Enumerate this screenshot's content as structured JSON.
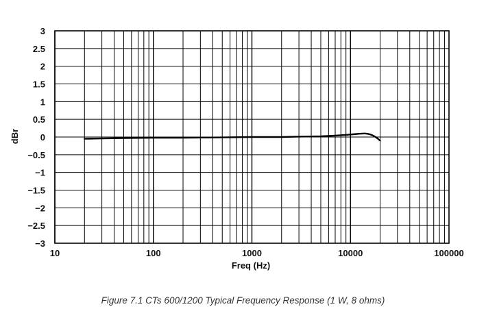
{
  "chart_data": {
    "type": "line",
    "xscale": "log",
    "xlim": [
      10,
      100000
    ],
    "ylim": [
      -3,
      3
    ],
    "xticks": [
      "10",
      "100",
      "1000",
      "10000",
      "100000"
    ],
    "yticks": [
      "3",
      "2.5",
      "2",
      "1.5",
      "1",
      "0.5",
      "0",
      "-0.5",
      "-1",
      "-1.5",
      "-2",
      "-2.5",
      "-3"
    ],
    "xlabel": "Freq (Hz)",
    "ylabel": "dBr",
    "grid": true,
    "series": [
      {
        "color": "#000000",
        "x": [
          20,
          30,
          50,
          100,
          200,
          500,
          1000,
          2000,
          3000,
          5000,
          7000,
          10000,
          12000,
          14000,
          15000,
          16000,
          17000,
          18000,
          19000,
          20000
        ],
        "y": [
          -0.05,
          -0.04,
          -0.03,
          -0.02,
          -0.02,
          -0.01,
          0,
          0,
          0.01,
          0.02,
          0.04,
          0.07,
          0.09,
          0.1,
          0.09,
          0.07,
          0.04,
          0.0,
          -0.05,
          -0.1
        ]
      }
    ]
  },
  "caption": "Figure 7.1  CTs 600/1200 Typical Frequency Response (1 W, 8 ohms)"
}
